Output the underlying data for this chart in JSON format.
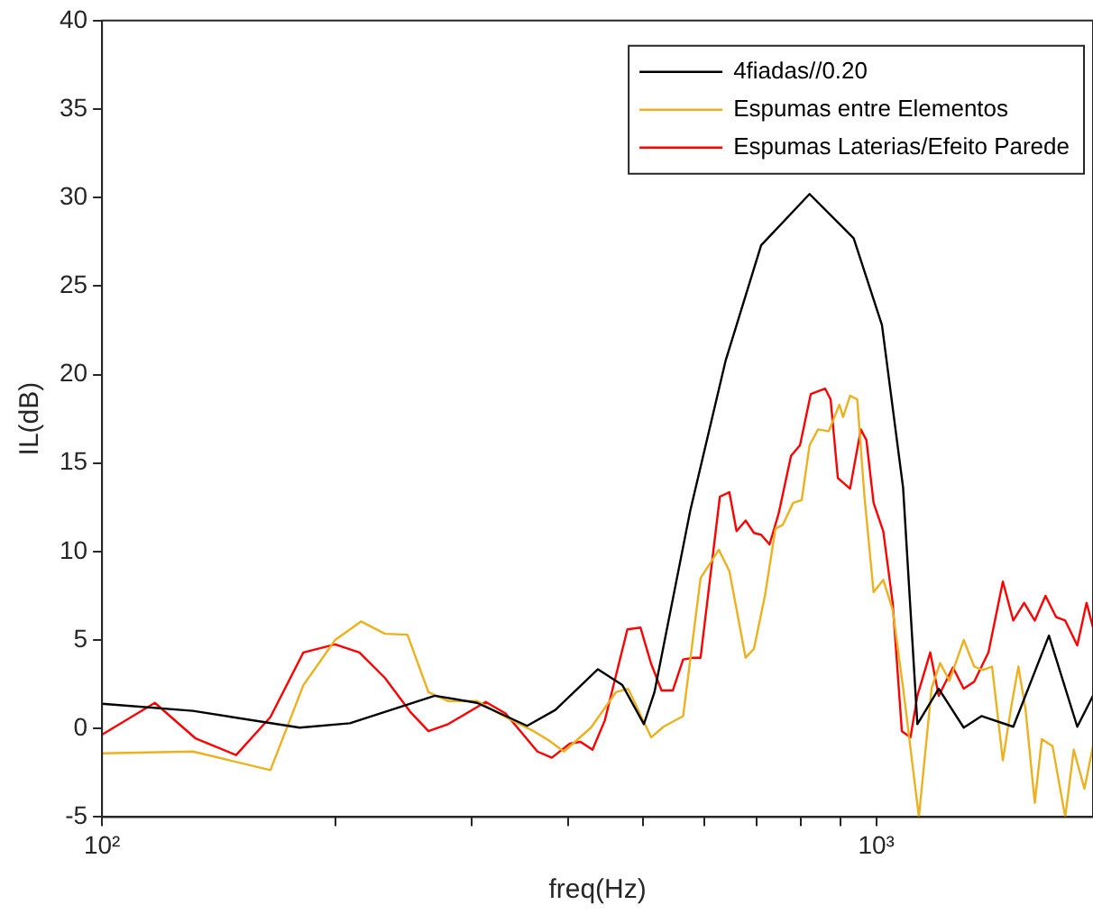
{
  "chart_data": {
    "type": "line",
    "xlabel": "freq(Hz)",
    "ylabel": "IL(dB)",
    "log": "x",
    "grid": false,
    "legend": "top right",
    "marker": "none",
    "line_style": "solid",
    "xlim": [
      100,
      1905
    ],
    "xticks": [
      {
        "value": 100,
        "label": "10²"
      },
      {
        "value": 200,
        "label": null
      },
      {
        "value": 300,
        "label": null
      },
      {
        "value": 400,
        "label": null
      },
      {
        "value": 500,
        "label": null
      },
      {
        "value": 600,
        "label": null
      },
      {
        "value": 700,
        "label": null
      },
      {
        "value": 800,
        "label": null
      },
      {
        "value": 900,
        "label": null
      },
      {
        "value": 1000,
        "label": "10³"
      }
    ],
    "ylim": [
      -5,
      40
    ],
    "yticks": [
      -5,
      0,
      5,
      10,
      15,
      20,
      25,
      30,
      35,
      40
    ],
    "series": [
      {
        "name": "4fiadas//0.20",
        "color": "#000000",
        "x": [
          100,
          131,
          180,
          209,
          269,
          305,
          354,
          385,
          437,
          470,
          501,
          517,
          575,
          639,
          710,
          820,
          935,
          1017,
          1083,
          1130,
          1204,
          1297,
          1367,
          1503,
          1671,
          1818,
          1905
        ],
        "values": [
          1.4,
          1.0,
          0.05,
          0.3,
          1.85,
          1.45,
          0.15,
          1.05,
          3.35,
          2.45,
          0.25,
          2.05,
          12.3,
          20.8,
          27.3,
          30.2,
          27.7,
          22.8,
          13.6,
          0.25,
          2.25,
          0.05,
          0.7,
          0.1,
          5.25,
          0.1,
          1.85
        ]
      },
      {
        "name": "Espumas entre Elementos",
        "color": "#edb120",
        "x": [
          100,
          131,
          165,
          182,
          200,
          216,
          232,
          248,
          264,
          280,
          305,
          332,
          361,
          377,
          395,
          428,
          461,
          478,
          512,
          531,
          563,
          593,
          626,
          646,
          678,
          695,
          718,
          741,
          757,
          781,
          801,
          820,
          841,
          868,
          896,
          906,
          925,
          945,
          965,
          992,
          1021,
          1050,
          1083,
          1135,
          1179,
          1209,
          1243,
          1297,
          1338,
          1373,
          1411,
          1457,
          1494,
          1526,
          1559,
          1602,
          1636,
          1689,
          1754,
          1799,
          1857,
          1905
        ],
        "values": [
          -1.4,
          -1.3,
          -2.35,
          2.45,
          5.0,
          6.05,
          5.35,
          5.3,
          2.05,
          1.55,
          1.55,
          0.65,
          -0.15,
          -0.65,
          -1.3,
          0.05,
          2.05,
          2.25,
          -0.5,
          0.1,
          0.7,
          8.5,
          10.1,
          8.9,
          4.0,
          4.5,
          7.5,
          11.3,
          11.5,
          12.75,
          12.9,
          16.0,
          16.9,
          16.8,
          18.3,
          17.6,
          18.8,
          18.6,
          13.2,
          7.7,
          8.4,
          6.7,
          2.3,
          -5.0,
          2.3,
          3.7,
          2.7,
          5.0,
          3.5,
          3.3,
          3.5,
          -1.8,
          1.25,
          3.5,
          1.05,
          -4.2,
          -0.6,
          -1.0,
          -5.0,
          -1.2,
          -3.4,
          -1.0
        ]
      },
      {
        "name": "Espumas Laterias/Efeito Parede",
        "color": "#ff0000",
        "x": [
          100,
          117,
          132,
          149,
          165,
          182,
          200,
          215,
          232,
          250,
          264,
          280,
          313,
          332,
          350,
          365,
          381,
          402,
          415,
          430,
          446,
          477,
          496,
          512,
          528,
          546,
          563,
          581,
          593,
          628,
          646,
          660,
          678,
          695,
          710,
          728,
          748,
          776,
          797,
          823,
          859,
          873,
          892,
          925,
          955,
          971,
          992,
          1021,
          1050,
          1079,
          1107,
          1130,
          1174,
          1204,
          1256,
          1297,
          1338,
          1396,
          1457,
          1503,
          1552,
          1602,
          1654,
          1707,
          1754,
          1818,
          1869,
          1905
        ],
        "values": [
          -0.35,
          1.45,
          -0.55,
          -1.5,
          0.65,
          4.3,
          4.75,
          4.3,
          2.85,
          0.95,
          -0.15,
          0.25,
          1.5,
          0.85,
          -0.35,
          -1.3,
          -1.65,
          -0.85,
          -0.75,
          -1.2,
          0.45,
          5.6,
          5.7,
          3.65,
          2.15,
          2.15,
          3.9,
          4.0,
          4.0,
          13.1,
          13.35,
          11.15,
          11.75,
          11.05,
          10.95,
          10.4,
          12.15,
          15.4,
          16.0,
          18.9,
          19.2,
          18.6,
          14.15,
          13.55,
          16.9,
          16.3,
          12.75,
          11.15,
          7.1,
          -0.15,
          -0.5,
          1.85,
          4.3,
          1.85,
          3.45,
          2.25,
          2.65,
          4.3,
          8.3,
          6.1,
          7.1,
          6.1,
          7.5,
          6.3,
          6.1,
          4.7,
          7.1,
          5.7
        ]
      }
    ]
  }
}
